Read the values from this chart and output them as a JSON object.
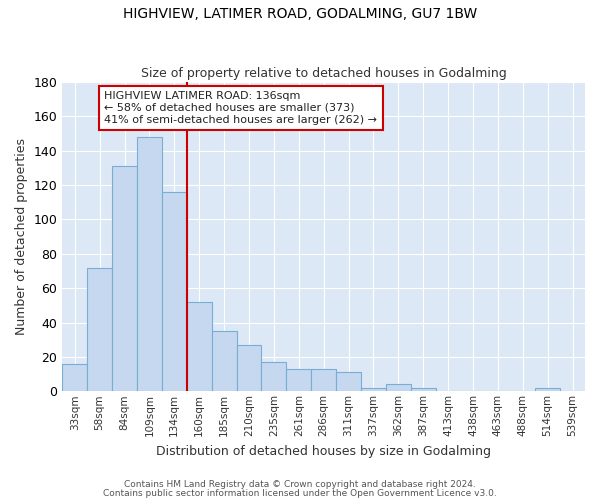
{
  "title1": "HIGHVIEW, LATIMER ROAD, GODALMING, GU7 1BW",
  "title2": "Size of property relative to detached houses in Godalming",
  "xlabel": "Distribution of detached houses by size in Godalming",
  "ylabel": "Number of detached properties",
  "categories": [
    "33sqm",
    "58sqm",
    "84sqm",
    "109sqm",
    "134sqm",
    "160sqm",
    "185sqm",
    "210sqm",
    "235sqm",
    "261sqm",
    "286sqm",
    "311sqm",
    "337sqm",
    "362sqm",
    "387sqm",
    "413sqm",
    "438sqm",
    "463sqm",
    "488sqm",
    "514sqm",
    "539sqm"
  ],
  "values": [
    16,
    72,
    131,
    148,
    116,
    52,
    35,
    27,
    17,
    13,
    13,
    11,
    2,
    4,
    2,
    0,
    0,
    0,
    0,
    2,
    0
  ],
  "bar_color": "#c5d8f0",
  "bar_edge_color": "#7aadd4",
  "red_line_index": 4,
  "annotation_line1": "HIGHVIEW LATIMER ROAD: 136sqm",
  "annotation_line2": "← 58% of detached houses are smaller (373)",
  "annotation_line3": "41% of semi-detached houses are larger (262) →",
  "annotation_box_color": "#ffffff",
  "annotation_box_edge_color": "#cc0000",
  "ylim": [
    0,
    180
  ],
  "yticks": [
    0,
    20,
    40,
    60,
    80,
    100,
    120,
    140,
    160,
    180
  ],
  "background_color": "#dce8f5",
  "grid_color": "#ffffff",
  "fig_background": "#ffffff",
  "footer1": "Contains HM Land Registry data © Crown copyright and database right 2024.",
  "footer2": "Contains public sector information licensed under the Open Government Licence v3.0."
}
